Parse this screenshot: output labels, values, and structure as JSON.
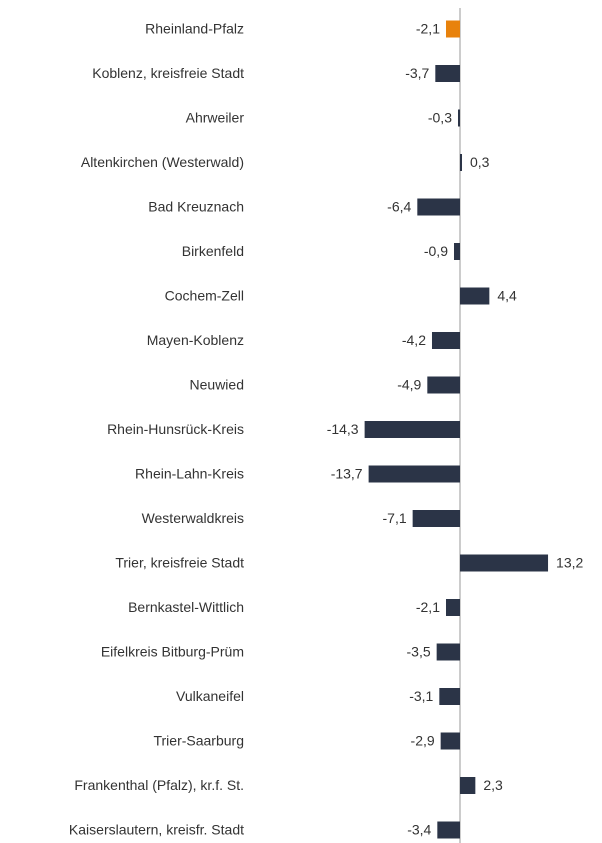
{
  "chart_data": {
    "type": "bar",
    "orientation": "horizontal",
    "categories": [
      "Rheinland-Pfalz",
      "Koblenz, kreisfreie Stadt",
      "Ahrweiler",
      "Altenkirchen (Westerwald)",
      "Bad Kreuznach",
      "Birkenfeld",
      "Cochem-Zell",
      "Mayen-Koblenz",
      "Neuwied",
      "Rhein-Hunsrück-Kreis",
      "Rhein-Lahn-Kreis",
      "Westerwaldkreis",
      "Trier, kreisfreie Stadt",
      "Bernkastel-Wittlich",
      "Eifelkreis Bitburg-Prüm",
      "Vulkaneifel",
      "Trier-Saarburg",
      "Frankenthal (Pfalz), kr.f. St.",
      "Kaiserslautern, kreisfr. Stadt"
    ],
    "values": [
      -2.1,
      -3.7,
      -0.3,
      0.3,
      -6.4,
      -0.9,
      4.4,
      -4.2,
      -4.9,
      -14.3,
      -13.7,
      -7.1,
      13.2,
      -2.1,
      -3.5,
      -3.1,
      -2.9,
      2.3,
      -3.4
    ],
    "value_labels": [
      "-2,1",
      "-3,7",
      "-0,3",
      "0,3",
      "-6,4",
      "-0,9",
      "4,4",
      "-4,2",
      "-4,9",
      "-14,3",
      "-13,7",
      "-7,1",
      "13,2",
      "-2,1",
      "-3,5",
      "-3,1",
      "-2,9",
      "2,3",
      "-3,4"
    ],
    "colors": [
      "#e8820c",
      "#2b3447",
      "#2b3447",
      "#2b3447",
      "#2b3447",
      "#2b3447",
      "#2b3447",
      "#2b3447",
      "#2b3447",
      "#2b3447",
      "#2b3447",
      "#2b3447",
      "#2b3447",
      "#2b3447",
      "#2b3447",
      "#2b3447",
      "#2b3447",
      "#2b3447",
      "#2b3447"
    ]
  }
}
